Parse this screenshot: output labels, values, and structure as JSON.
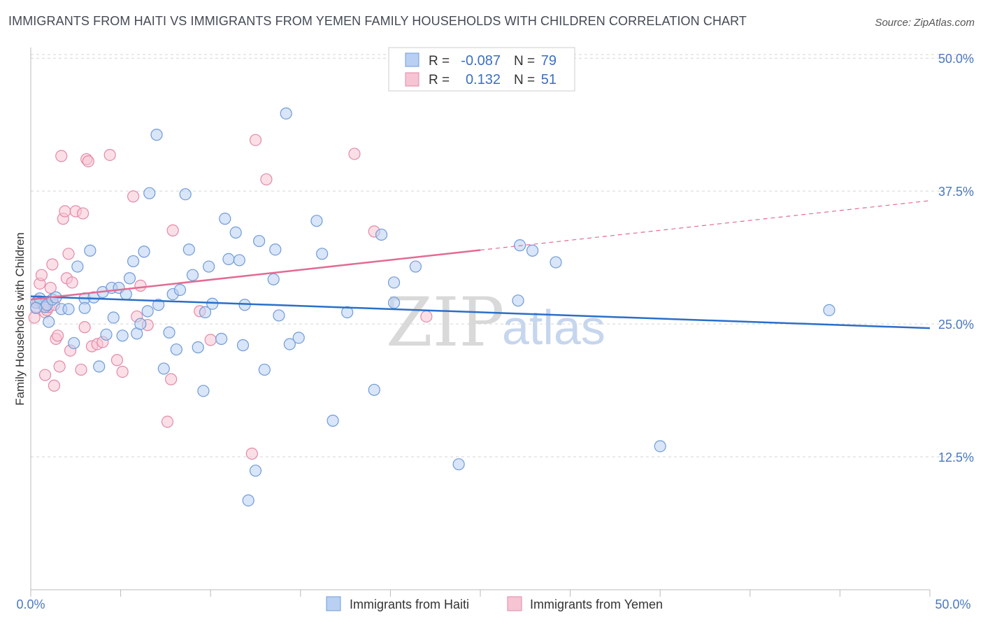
{
  "header": {
    "title": "IMMIGRANTS FROM HAITI VS IMMIGRANTS FROM YEMEN FAMILY HOUSEHOLDS WITH CHILDREN CORRELATION CHART",
    "source": "Source: ZipAtlas.com"
  },
  "watermark": {
    "zip": "ZIP",
    "atlas": "atlas"
  },
  "colors": {
    "haiti_fill": "#b9d0f3",
    "haiti_stroke": "#6f9bd8",
    "haiti_line": "#2a6fc9",
    "yemen_fill": "#f7c4d3",
    "yemen_stroke": "#e28aa7",
    "yemen_line": "#e26b93",
    "grid": "#d5d5d5",
    "tick_text": "#4a78c2"
  },
  "legend": {
    "rows": [
      {
        "r_label": "R =",
        "r_value": "-0.087",
        "n_label": "N =",
        "n_value": "79"
      },
      {
        "r_label": "R =",
        "r_value": "0.132",
        "n_label": "N =",
        "n_value": "51"
      }
    ]
  },
  "bottom_legend": [
    "Immigrants from Haiti",
    "Immigrants from Yemen"
  ],
  "chart_data": {
    "type": "scatter",
    "title": "IMMIGRANTS FROM HAITI VS IMMIGRANTS FROM YEMEN FAMILY HOUSEHOLDS WITH CHILDREN CORRELATION CHART",
    "xlabel": "",
    "ylabel": "Family Households with Children",
    "xlim": [
      0,
      50
    ],
    "ylim": [
      0,
      51
    ],
    "x_tick_labels": [
      "0.0%",
      "50.0%"
    ],
    "y_ticks": [
      12.5,
      25.0,
      37.5,
      50.0
    ],
    "y_tick_labels": [
      "12.5%",
      "25.0%",
      "37.5%",
      "50.0%"
    ],
    "series": [
      {
        "name": "Immigrants from Haiti",
        "r": -0.087,
        "n": 79,
        "trend": {
          "x": [
            0,
            50
          ],
          "y": [
            27.6,
            24.6
          ],
          "dashed_from": null
        },
        "points": [
          [
            0.3,
            27.0
          ],
          [
            0.5,
            27.4
          ],
          [
            0.8,
            26.6
          ],
          [
            0.3,
            26.5
          ],
          [
            0.9,
            26.8
          ],
          [
            1.0,
            25.2
          ],
          [
            1.2,
            27.3
          ],
          [
            1.4,
            27.5
          ],
          [
            1.7,
            26.4
          ],
          [
            2.1,
            26.4
          ],
          [
            2.4,
            23.2
          ],
          [
            2.6,
            30.4
          ],
          [
            3.0,
            27.4
          ],
          [
            3.0,
            26.5
          ],
          [
            3.3,
            31.9
          ],
          [
            3.5,
            27.5
          ],
          [
            3.8,
            21.0
          ],
          [
            4.0,
            28.0
          ],
          [
            4.2,
            24.0
          ],
          [
            4.5,
            28.4
          ],
          [
            4.6,
            25.6
          ],
          [
            4.9,
            28.4
          ],
          [
            5.1,
            23.9
          ],
          [
            5.3,
            27.8
          ],
          [
            5.5,
            29.3
          ],
          [
            5.7,
            30.9
          ],
          [
            5.9,
            24.1
          ],
          [
            6.1,
            25.0
          ],
          [
            6.3,
            31.8
          ],
          [
            6.5,
            26.2
          ],
          [
            6.6,
            37.3
          ],
          [
            7.0,
            42.8
          ],
          [
            7.1,
            26.8
          ],
          [
            7.4,
            20.8
          ],
          [
            7.7,
            24.2
          ],
          [
            7.9,
            27.8
          ],
          [
            8.1,
            22.6
          ],
          [
            8.3,
            28.2
          ],
          [
            8.6,
            37.2
          ],
          [
            8.8,
            32.0
          ],
          [
            9.0,
            29.6
          ],
          [
            9.3,
            22.8
          ],
          [
            9.6,
            18.7
          ],
          [
            9.7,
            26.1
          ],
          [
            9.9,
            30.4
          ],
          [
            10.1,
            26.9
          ],
          [
            10.6,
            23.6
          ],
          [
            10.8,
            34.9
          ],
          [
            11.0,
            31.1
          ],
          [
            11.4,
            33.6
          ],
          [
            11.6,
            31.0
          ],
          [
            11.8,
            23.0
          ],
          [
            11.9,
            26.8
          ],
          [
            12.1,
            8.4
          ],
          [
            12.5,
            11.2
          ],
          [
            12.7,
            32.8
          ],
          [
            13.0,
            20.7
          ],
          [
            13.5,
            29.2
          ],
          [
            13.6,
            32.0
          ],
          [
            13.8,
            25.8
          ],
          [
            14.2,
            44.8
          ],
          [
            14.4,
            23.1
          ],
          [
            14.9,
            23.7
          ],
          [
            15.9,
            34.7
          ],
          [
            16.2,
            31.6
          ],
          [
            16.8,
            15.9
          ],
          [
            17.6,
            26.1
          ],
          [
            19.1,
            18.8
          ],
          [
            19.5,
            33.4
          ],
          [
            20.2,
            28.9
          ],
          [
            20.2,
            27.0
          ],
          [
            21.4,
            30.4
          ],
          [
            23.8,
            11.8
          ],
          [
            27.1,
            27.2
          ],
          [
            27.2,
            32.4
          ],
          [
            27.9,
            31.9
          ],
          [
            29.2,
            30.8
          ],
          [
            35.0,
            13.5
          ],
          [
            44.4,
            26.3
          ]
        ]
      },
      {
        "name": "Immigrants from Yemen",
        "r": 0.132,
        "n": 51,
        "trend": {
          "x": [
            0,
            50
          ],
          "y": [
            27.3,
            36.6
          ],
          "dashed_from": 25.0
        },
        "points": [
          [
            0.2,
            25.6
          ],
          [
            0.3,
            26.6
          ],
          [
            0.4,
            27.2
          ],
          [
            0.5,
            28.8
          ],
          [
            0.6,
            29.6
          ],
          [
            0.7,
            26.8
          ],
          [
            0.8,
            26.1
          ],
          [
            0.9,
            26.3
          ],
          [
            1.0,
            26.6
          ],
          [
            1.1,
            28.4
          ],
          [
            1.2,
            30.6
          ],
          [
            1.3,
            26.8
          ],
          [
            1.4,
            23.6
          ],
          [
            1.5,
            23.9
          ],
          [
            1.6,
            21.0
          ],
          [
            1.7,
            40.8
          ],
          [
            1.8,
            34.9
          ],
          [
            1.9,
            35.6
          ],
          [
            2.0,
            29.3
          ],
          [
            2.1,
            31.6
          ],
          [
            2.2,
            22.5
          ],
          [
            2.3,
            28.9
          ],
          [
            2.5,
            35.6
          ],
          [
            2.8,
            20.7
          ],
          [
            2.9,
            35.4
          ],
          [
            3.0,
            24.7
          ],
          [
            3.1,
            40.5
          ],
          [
            3.2,
            40.3
          ],
          [
            3.4,
            22.9
          ],
          [
            3.7,
            23.1
          ],
          [
            4.0,
            23.3
          ],
          [
            4.4,
            40.9
          ],
          [
            4.8,
            21.6
          ],
          [
            5.1,
            20.5
          ],
          [
            5.7,
            37.0
          ],
          [
            5.9,
            25.7
          ],
          [
            6.1,
            28.6
          ],
          [
            6.5,
            24.9
          ],
          [
            7.6,
            15.8
          ],
          [
            7.8,
            19.8
          ],
          [
            7.9,
            33.8
          ],
          [
            9.4,
            26.2
          ],
          [
            10.0,
            23.5
          ],
          [
            12.3,
            12.8
          ],
          [
            12.5,
            42.3
          ],
          [
            13.1,
            38.6
          ],
          [
            0.8,
            20.2
          ],
          [
            1.3,
            19.2
          ],
          [
            18.0,
            41.0
          ],
          [
            19.1,
            33.7
          ],
          [
            22.0,
            25.7
          ]
        ]
      }
    ],
    "legend": "top-center"
  }
}
